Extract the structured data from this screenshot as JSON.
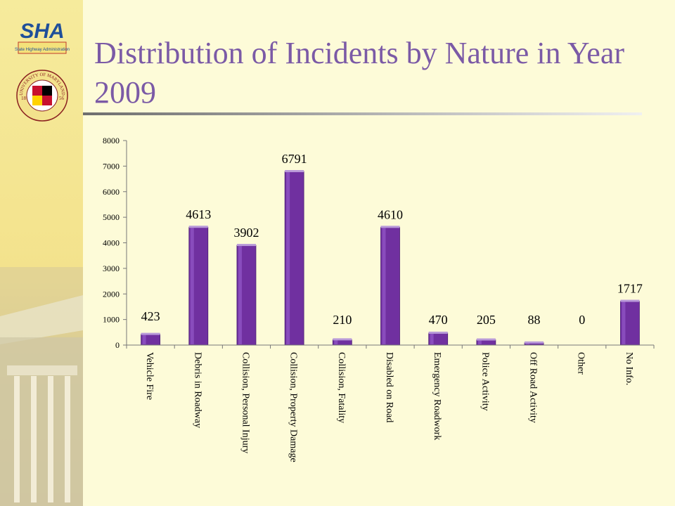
{
  "header": {
    "title": "Distribution of Incidents by Nature in Year 2009",
    "sha_logo_text": "SHA",
    "sha_logo_subtext": "State Highway Administration",
    "umd_seal_text": "UNIVERSITY OF MARYLAND",
    "umd_seal_years": [
      "18",
      "56"
    ]
  },
  "colors": {
    "bar": "#7030a0",
    "title": "#7b5aa6",
    "background": "#fdfbd8"
  },
  "chart_data": {
    "type": "bar",
    "categories": [
      "Vehicle Fire",
      "Debris in Roadway",
      "Collision, Personal Injury",
      "Collision, Property Damage",
      "Collision, Fatality",
      "Disabled on Road",
      "Emergency Roadwork",
      "Police Activity",
      "Off Road Activity",
      "Other",
      "No Info."
    ],
    "values": [
      423,
      4613,
      3902,
      6791,
      210,
      4610,
      470,
      205,
      88,
      0,
      1717
    ],
    "data_labels": [
      "423",
      "4613",
      "3902",
      "6791",
      "210",
      "4610",
      "470",
      "205",
      "88",
      "0",
      "1717"
    ],
    "yticks": [
      "0",
      "1000",
      "2000",
      "3000",
      "4000",
      "5000",
      "6000",
      "7000",
      "8000"
    ],
    "ylim": [
      0,
      8000
    ],
    "title": "",
    "xlabel": "",
    "ylabel": "",
    "grid": false,
    "legend": "none"
  }
}
